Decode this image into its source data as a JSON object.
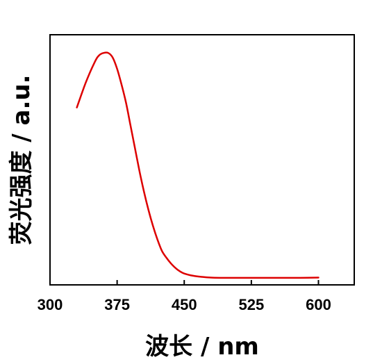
{
  "chart_data": {
    "type": "line",
    "title": "",
    "xlabel": "波长 / nm",
    "ylabel": "荧光强度 / a.u.",
    "xlim": [
      300,
      640
    ],
    "ylim": [
      0,
      1.1
    ],
    "x_ticks": [
      "300",
      "375",
      "450",
      "525",
      "600"
    ],
    "x_tick_values": [
      300,
      375,
      450,
      525,
      600
    ],
    "y_ticks_shown": false,
    "grid": false,
    "legend": "none",
    "series": [
      {
        "color": "#dd0000",
        "x": [
          330,
          340,
          350,
          355,
          360,
          365,
          370,
          375,
          380,
          385,
          390,
          395,
          400,
          405,
          410,
          415,
          420,
          425,
          430,
          435,
          440,
          445,
          450,
          460,
          470,
          480,
          490,
          500,
          520,
          540,
          560,
          580,
          600
        ],
        "y": [
          0.78,
          0.89,
          0.98,
          1.01,
          1.02,
          1.02,
          1.0,
          0.95,
          0.88,
          0.8,
          0.7,
          0.6,
          0.5,
          0.41,
          0.33,
          0.26,
          0.2,
          0.15,
          0.12,
          0.095,
          0.075,
          0.06,
          0.05,
          0.04,
          0.035,
          0.032,
          0.031,
          0.031,
          0.031,
          0.031,
          0.031,
          0.031,
          0.032
        ]
      }
    ]
  }
}
